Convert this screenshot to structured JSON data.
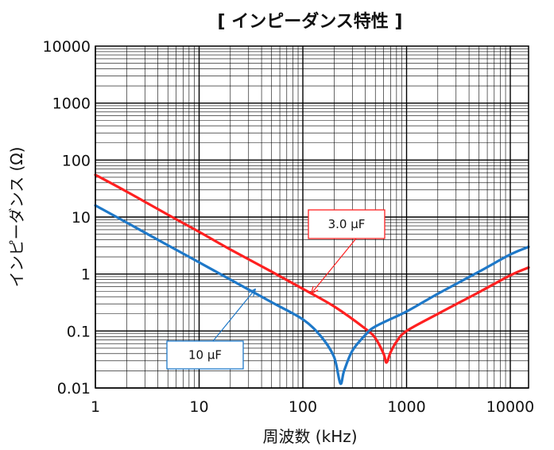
{
  "chart_data": {
    "type": "line",
    "title": "[ インピーダンス特性 ]",
    "xlabel": "周波数 (kHz)",
    "ylabel": "インピーダンス (Ω)",
    "x_scale": "log",
    "y_scale": "log",
    "xlim": [
      1,
      15000
    ],
    "ylim": [
      0.01,
      10000
    ],
    "x_ticks": [
      "1",
      "10",
      "100",
      "1000",
      "10000"
    ],
    "y_ticks": [
      "0.01",
      "0.1",
      "1",
      "10",
      "100",
      "1000",
      "10000"
    ],
    "grid": true,
    "series": [
      {
        "name": "3.0 μF",
        "color": "#ff2020",
        "points": [
          [
            1,
            55
          ],
          [
            2,
            28
          ],
          [
            5,
            11
          ],
          [
            10,
            5.5
          ],
          [
            20,
            2.7
          ],
          [
            50,
            1.1
          ],
          [
            100,
            0.55
          ],
          [
            200,
            0.27
          ],
          [
            400,
            0.11
          ],
          [
            500,
            0.075
          ],
          [
            600,
            0.04
          ],
          [
            640,
            0.028
          ],
          [
            700,
            0.042
          ],
          [
            800,
            0.065
          ],
          [
            1000,
            0.1
          ],
          [
            2000,
            0.2
          ],
          [
            5000,
            0.48
          ],
          [
            10000,
            0.95
          ],
          [
            15000,
            1.3
          ]
        ]
      },
      {
        "name": "10 μF",
        "color": "#1e78c8",
        "points": [
          [
            1,
            16
          ],
          [
            2,
            8
          ],
          [
            5,
            3.2
          ],
          [
            10,
            1.6
          ],
          [
            20,
            0.8
          ],
          [
            50,
            0.32
          ],
          [
            100,
            0.16
          ],
          [
            150,
            0.08
          ],
          [
            200,
            0.035
          ],
          [
            230,
            0.012
          ],
          [
            250,
            0.02
          ],
          [
            300,
            0.045
          ],
          [
            400,
            0.085
          ],
          [
            500,
            0.12
          ],
          [
            1000,
            0.22
          ],
          [
            2000,
            0.45
          ],
          [
            5000,
            1.1
          ],
          [
            10000,
            2.2
          ],
          [
            15000,
            3.0
          ]
        ]
      }
    ],
    "annotations": [
      {
        "text": "3.0 μF",
        "series": "3.0 μF",
        "arrow_to": [
          120,
          0.45
        ]
      },
      {
        "text": "10 μF",
        "series": "10 μF",
        "arrow_to": [
          35,
          0.55
        ]
      }
    ]
  }
}
